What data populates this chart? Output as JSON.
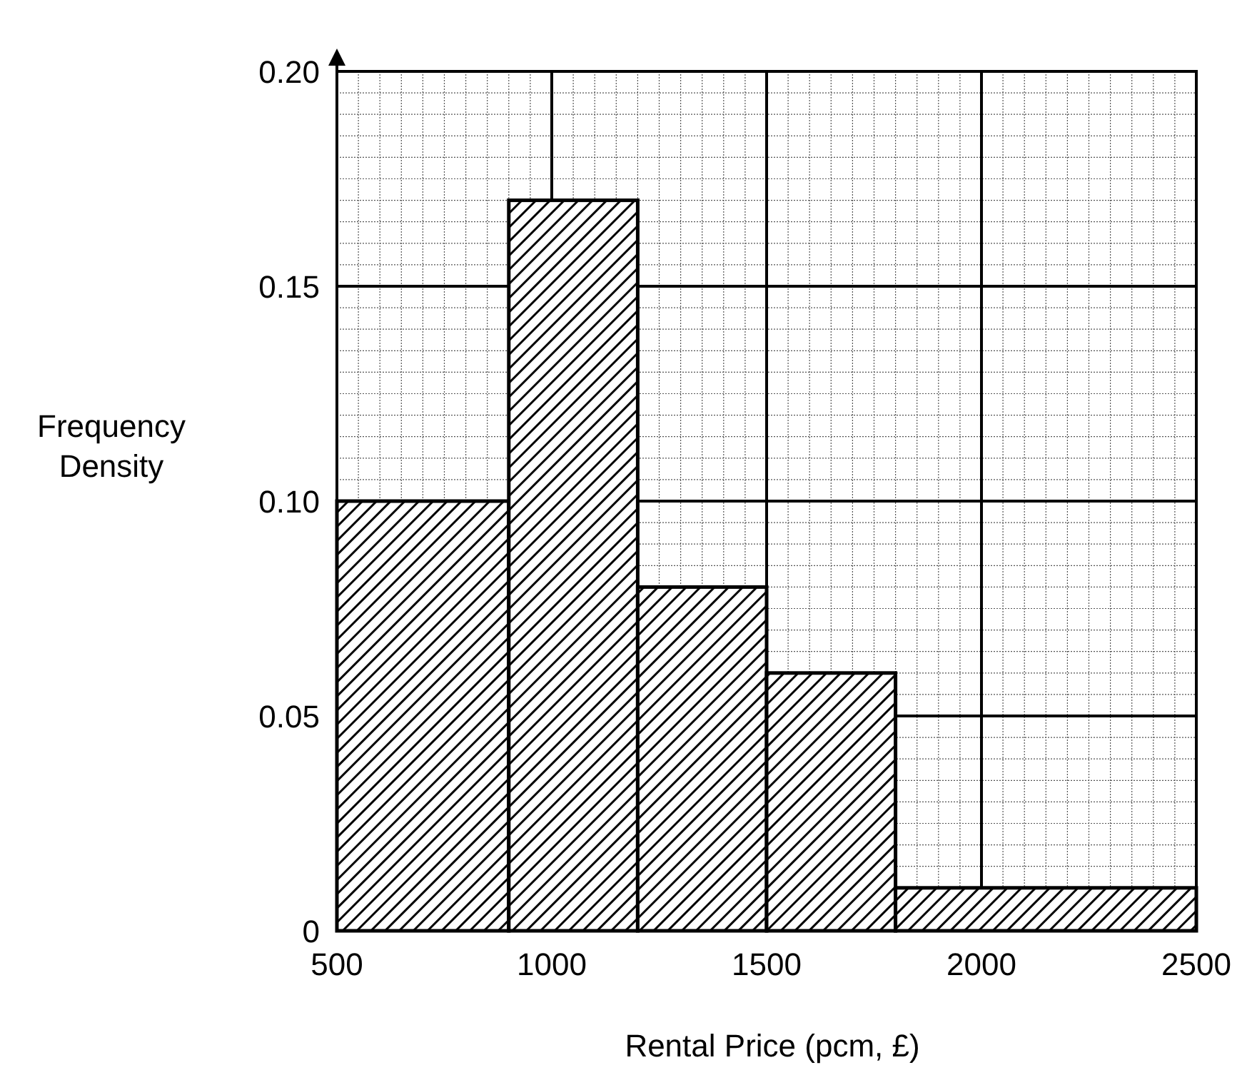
{
  "chart_data": {
    "type": "histogram",
    "xlabel": "Rental Price (pcm, £)",
    "ylabel": "Frequency Density",
    "bins": [
      500,
      900,
      1200,
      1500,
      1800,
      2500
    ],
    "values": [
      0.1,
      0.17,
      0.08,
      0.06,
      0.01
    ],
    "color": "#000000",
    "xlim": [
      500,
      2500
    ],
    "xticks": [
      500,
      1000,
      1500,
      2000,
      2500
    ],
    "ylim": [
      0,
      0.2
    ],
    "yticks": [
      0,
      {
        "value": 0.05,
        "label": "0.05"
      },
      {
        "value": 0.1,
        "label": "0.10"
      },
      {
        "value": 0.15,
        "label": "0.15"
      },
      {
        "value": 0.2,
        "label": "0.20"
      }
    ],
    "grid": true
  }
}
